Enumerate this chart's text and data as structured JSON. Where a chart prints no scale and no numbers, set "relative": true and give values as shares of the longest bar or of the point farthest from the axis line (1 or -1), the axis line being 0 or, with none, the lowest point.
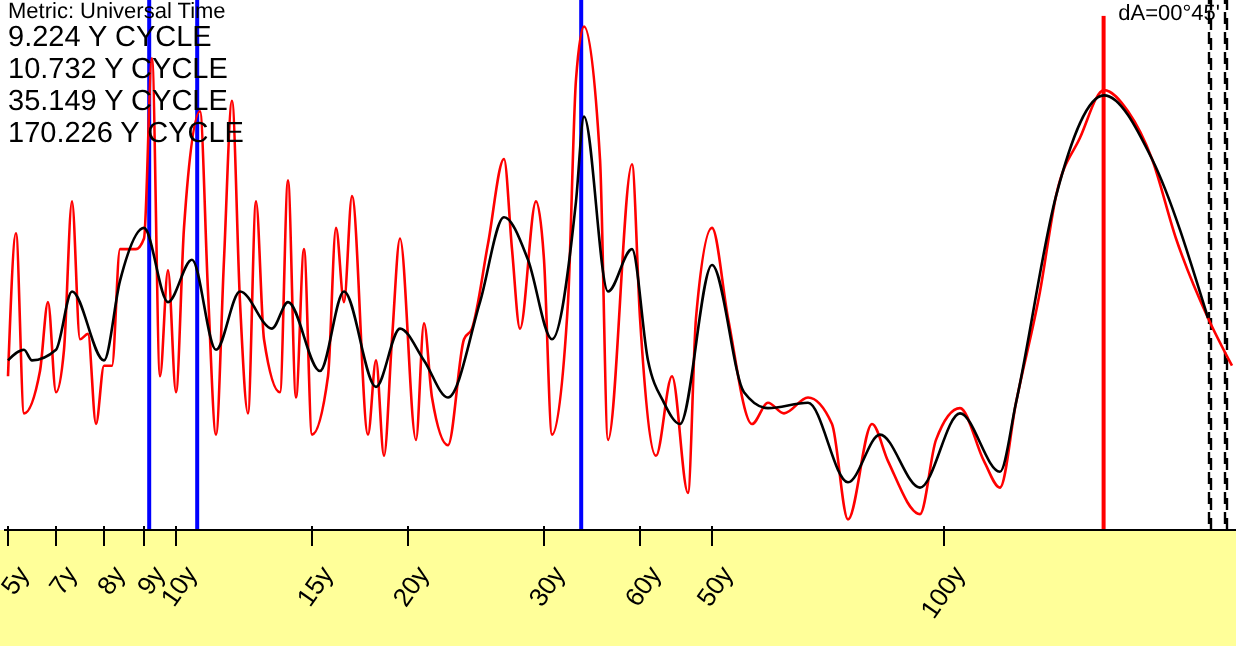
{
  "chart_data": {
    "type": "line",
    "title": "Metric: Universal Time",
    "annotations": [
      "9.224 Y CYCLE",
      "10.732 Y CYCLE",
      "35.149 Y CYCLE",
      "170.226 Y CYCLE",
      "dA=00°45'"
    ],
    "relative": true,
    "line_style": "solid",
    "categories": [
      "5y",
      null,
      null,
      null,
      null,
      null,
      "7y",
      null,
      null,
      null,
      null,
      null,
      "8y",
      null,
      null,
      null,
      null,
      "9y",
      null,
      null,
      null,
      "10y",
      null,
      null,
      null,
      null,
      null,
      null,
      null,
      null,
      null,
      null,
      null,
      null,
      null,
      null,
      null,
      null,
      "15y",
      null,
      null,
      null,
      null,
      null,
      null,
      null,
      null,
      null,
      null,
      null,
      "20y",
      null,
      null,
      null,
      null,
      null,
      null,
      null,
      null,
      null,
      null,
      null,
      null,
      null,
      null,
      null,
      null,
      "30y",
      null,
      null,
      null,
      null,
      null,
      null,
      null,
      null,
      null,
      null,
      null,
      "60y",
      null,
      null,
      null,
      null,
      null,
      null,
      null,
      null,
      "50y",
      null,
      null,
      null,
      null,
      null,
      null,
      null,
      null,
      null,
      null,
      null,
      null,
      null,
      null,
      null,
      null,
      null,
      null,
      null,
      null,
      null,
      null,
      null,
      null,
      null,
      null,
      null,
      null,
      "100y",
      null,
      null,
      null,
      null,
      null,
      null,
      null,
      null,
      null,
      null,
      null,
      null,
      null,
      null,
      null,
      null,
      null,
      null,
      null,
      null,
      null,
      null,
      null,
      null,
      null,
      null,
      null,
      null,
      null,
      null,
      null,
      null,
      null,
      null,
      null,
      null
    ],
    "series": [
      {
        "color": "#ff0000",
        "values": [
          0.29,
          0.56,
          0.22,
          null,
          0.3,
          0.43,
          0.26,
          0.34,
          0.62,
          0.36,
          0.37,
          0.2,
          0.31,
          0.31,
          0.53,
          null,
          0.53,
          0.55,
          0.89,
          0.29,
          0.49,
          0.26,
          0.57,
          null,
          0.79,
          0.45,
          0.18,
          0.51,
          0.81,
          0.43,
          0.22,
          0.62,
          0.36,
          null,
          0.26,
          0.66,
          0.25,
          0.53,
          0.18,
          null,
          0.29,
          0.57,
          0.43,
          0.63,
          null,
          0.18,
          0.32,
          0.14,
          0.36,
          0.55,
          null,
          0.17,
          0.39,
          0.25,
          null,
          0.16,
          null,
          0.36,
          0.38,
          null,
          0.54,
          null,
          0.7,
          0.53,
          0.38,
          null,
          0.62,
          0.51,
          0.18,
          null,
          0.43,
          0.85,
          0.95,
          null,
          0.7,
          0.17,
          null,
          null,
          0.69,
          0.4,
          null,
          0.14,
          null,
          0.29,
          null,
          0.07,
          0.4,
          null,
          0.57,
          null,
          0.4,
          null,
          null,
          0.2,
          null,
          0.24,
          null,
          0.22,
          null,
          null,
          0.25,
          null,
          null,
          0.2,
          null,
          0.02,
          null,
          null,
          0.2,
          null,
          0.13,
          null,
          null,
          null,
          0.03,
          null,
          0.17,
          null,
          null,
          0.23,
          null,
          null,
          0.13,
          null,
          0.08,
          null,
          0.24,
          null,
          null,
          0.45,
          null,
          0.63,
          null,
          null,
          0.74,
          null,
          null,
          0.83,
          null,
          null,
          0.79,
          null,
          null,
          0.7,
          null,
          null,
          0.55,
          null,
          null,
          null,
          0.4,
          null,
          null,
          0.31
        ]
      },
      {
        "color": "#000000",
        "values": [
          0.32,
          null,
          0.34,
          0.32,
          null,
          null,
          0.34,
          null,
          0.45,
          null,
          null,
          null,
          0.32,
          null,
          0.47,
          null,
          null,
          0.57,
          null,
          null,
          0.43,
          null,
          null,
          0.51,
          null,
          null,
          0.34,
          null,
          null,
          0.45,
          null,
          null,
          null,
          0.38,
          null,
          0.43,
          null,
          null,
          null,
          0.3,
          null,
          null,
          0.45,
          null,
          null,
          null,
          0.27,
          null,
          null,
          0.38,
          null,
          null,
          0.32,
          null,
          null,
          0.25,
          null,
          null,
          null,
          0.43,
          null,
          null,
          0.59,
          null,
          null,
          0.51,
          null,
          null,
          0.36,
          null,
          null,
          0.62,
          0.78,
          null,
          null,
          0.45,
          null,
          null,
          0.53,
          null,
          0.32,
          null,
          0.24,
          null,
          0.2,
          null,
          null,
          null,
          0.5,
          null,
          null,
          null,
          0.26,
          null,
          null,
          0.23,
          null,
          null,
          null,
          null,
          0.24,
          null,
          null,
          null,
          null,
          0.09,
          null,
          null,
          null,
          0.18,
          null,
          null,
          null,
          null,
          0.08,
          null,
          null,
          null,
          null,
          0.22,
          null,
          null,
          null,
          null,
          0.11,
          null,
          0.24,
          null,
          null,
          null,
          null,
          0.63,
          null,
          null,
          null,
          null,
          null,
          0.82,
          null,
          null,
          null,
          null,
          null,
          0.7,
          null,
          null,
          null,
          null,
          null,
          null,
          0.4,
          null,
          null,
          null
        ]
      },
      {
        "type": "bar",
        "color": "#0000ff",
        "values": [
          null,
          null,
          null,
          null,
          null,
          null,
          null,
          null,
          null,
          null,
          null,
          null,
          null,
          null,
          null,
          null,
          null,
          null,
          1.0,
          null,
          null,
          null,
          null,
          null,
          1.0,
          null,
          null,
          null,
          null,
          null,
          null,
          null,
          null,
          null,
          null,
          null,
          null,
          null,
          null,
          null,
          null,
          null,
          null,
          null,
          null,
          null,
          null,
          null,
          null,
          null,
          null,
          null,
          null,
          null,
          null,
          null,
          null,
          null,
          null,
          null,
          null,
          null,
          null,
          null,
          null,
          null,
          null,
          null,
          null,
          null,
          null,
          null,
          1.0,
          null,
          null,
          null,
          null,
          null,
          null,
          null,
          null,
          null,
          null,
          null,
          null,
          null,
          null,
          null,
          null,
          null,
          null,
          null,
          null,
          null,
          null,
          null,
          null,
          null,
          null,
          null,
          null,
          null,
          null,
          null,
          null,
          null,
          null,
          null,
          null,
          null,
          null,
          null,
          null,
          null,
          null,
          null,
          null,
          null,
          null,
          null,
          null,
          null,
          null,
          null,
          null,
          null,
          null,
          null,
          null,
          null,
          null,
          null,
          null,
          null,
          null,
          null,
          null,
          null,
          null,
          null,
          null,
          null,
          null,
          null,
          null,
          null,
          null,
          null,
          null,
          null,
          null,
          null,
          null,
          null
        ]
      },
      {
        "type": "bar",
        "color": "#ff0000",
        "values": [
          null,
          null,
          null,
          null,
          null,
          null,
          null,
          null,
          null,
          null,
          null,
          null,
          null,
          null,
          null,
          null,
          null,
          null,
          null,
          null,
          null,
          null,
          null,
          null,
          null,
          null,
          null,
          null,
          null,
          null,
          null,
          null,
          null,
          null,
          null,
          null,
          null,
          null,
          null,
          null,
          null,
          null,
          null,
          null,
          null,
          null,
          null,
          null,
          null,
          null,
          null,
          null,
          null,
          null,
          null,
          null,
          null,
          null,
          null,
          null,
          null,
          null,
          null,
          null,
          null,
          null,
          null,
          null,
          null,
          null,
          null,
          null,
          null,
          null,
          null,
          null,
          null,
          null,
          null,
          null,
          null,
          null,
          null,
          null,
          null,
          null,
          null,
          null,
          null,
          null,
          null,
          null,
          null,
          null,
          null,
          null,
          null,
          null,
          null,
          null,
          null,
          null,
          null,
          null,
          null,
          null,
          null,
          null,
          null,
          null,
          null,
          null,
          null,
          null,
          null,
          null,
          null,
          null,
          null,
          null,
          null,
          null,
          null,
          null,
          null,
          null,
          null,
          null,
          null,
          null,
          null,
          null,
          null,
          null,
          null,
          null,
          null,
          0.97,
          null,
          null,
          null,
          null,
          null,
          null,
          null,
          null,
          null,
          null,
          null,
          null,
          null,
          null,
          null,
          null
        ]
      },
      {
        "type": "bar",
        "color": "#000000",
        "line_style": "dashed",
        "values": [
          null,
          null,
          null,
          null,
          null,
          null,
          null,
          null,
          null,
          null,
          null,
          null,
          null,
          null,
          null,
          null,
          null,
          null,
          null,
          null,
          null,
          null,
          null,
          null,
          null,
          null,
          null,
          null,
          null,
          null,
          null,
          null,
          null,
          null,
          null,
          null,
          null,
          null,
          null,
          null,
          null,
          null,
          null,
          null,
          null,
          null,
          null,
          null,
          null,
          null,
          null,
          null,
          null,
          null,
          null,
          null,
          null,
          null,
          null,
          null,
          null,
          null,
          null,
          null,
          null,
          null,
          null,
          null,
          null,
          null,
          null,
          null,
          null,
          null,
          null,
          null,
          null,
          null,
          null,
          null,
          null,
          null,
          null,
          null,
          null,
          null,
          null,
          null,
          null,
          null,
          null,
          null,
          null,
          null,
          null,
          null,
          null,
          null,
          null,
          null,
          null,
          null,
          null,
          null,
          null,
          null,
          null,
          null,
          null,
          null,
          null,
          null,
          null,
          null,
          null,
          null,
          null,
          null,
          null,
          null,
          null,
          null,
          null,
          null,
          null,
          null,
          null,
          null,
          null,
          null,
          null,
          null,
          null,
          null,
          null,
          null,
          null,
          null,
          null,
          null,
          null,
          null,
          null,
          null,
          null,
          null,
          null,
          null,
          null,
          null,
          1.0,
          null,
          1.0,
          null
        ]
      }
    ]
  }
}
